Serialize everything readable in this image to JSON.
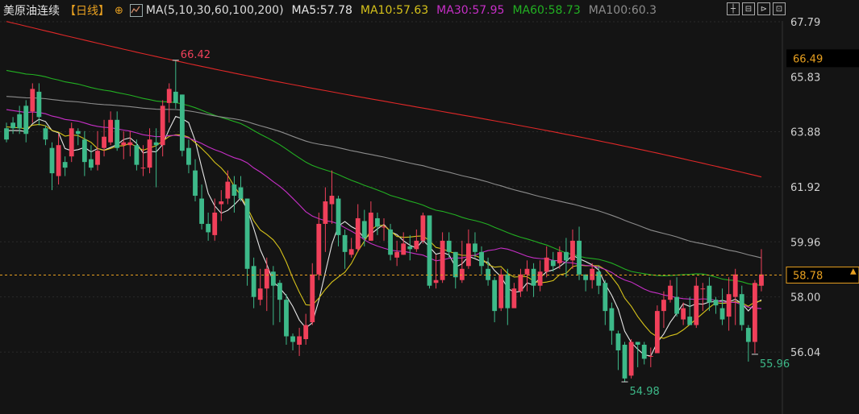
{
  "header": {
    "title": "美原油连续",
    "period": "【日线】",
    "ma_params": "MA(5,10,30,60,100,200)",
    "ma5": "MA5:57.78",
    "ma10": "MA10:57.63",
    "ma30": "MA30:57.95",
    "ma60": "MA60:58.73",
    "ma100": "MA100:60.3",
    "icons": [
      "plus-circle-icon",
      "ma-settings-icon",
      "crosshair-icon",
      "fit-icon",
      "step-icon",
      "fullscreen-icon"
    ]
  },
  "colors": {
    "up": "#f0405a",
    "down": "#3db989",
    "ma5": "#e6e6e6",
    "ma10": "#d6c21a",
    "ma30": "#c62fc6",
    "ma60": "#22b022",
    "ma100": "#8c8c8c",
    "ma200": "#e02828",
    "current_price": "#e8a020",
    "ma200_price": "#e8a020"
  },
  "chart_data": {
    "type": "candlestick",
    "y_ticks": [
      "67.79",
      "63.88",
      "61.92",
      "59.96",
      "58.00",
      "56.04"
    ],
    "current_price": 58.78,
    "current_price_label": "58.78",
    "ma200_label": "66.49",
    "ma200_value": 66.49,
    "ma200_obscured_tick": "65.83",
    "annotations": [
      {
        "label": "66.42",
        "value": 66.42,
        "type": "high"
      },
      {
        "label": "55.96",
        "value": 55.96,
        "type": "low"
      },
      {
        "label": "54.98",
        "value": 54.98,
        "type": "low"
      }
    ],
    "ylim": [
      54.3,
      68.1
    ],
    "candles": [
      [
        64.0,
        63.6,
        64.2,
        63.5
      ],
      [
        64.2,
        64.0,
        64.4,
        63.8
      ],
      [
        64.5,
        64.0,
        64.8,
        63.8
      ],
      [
        64.8,
        63.8,
        65.0,
        63.5
      ],
      [
        64.6,
        65.4,
        65.6,
        64.2
      ],
      [
        65.3,
        64.4,
        65.6,
        64.1
      ],
      [
        64.0,
        63.6,
        64.1,
        63.4
      ],
      [
        63.3,
        62.4,
        63.5,
        61.8
      ],
      [
        62.3,
        63.4,
        63.8,
        62.0
      ],
      [
        62.8,
        62.6,
        63.0,
        62.3
      ],
      [
        63.0,
        64.0,
        64.2,
        62.8
      ],
      [
        63.9,
        63.8,
        64.0,
        63.4
      ],
      [
        63.6,
        62.8,
        63.9,
        62.3
      ],
      [
        62.9,
        62.6,
        63.4,
        62.5
      ],
      [
        62.7,
        63.2,
        63.9,
        62.5
      ],
      [
        63.3,
        63.7,
        64.3,
        63.0
      ],
      [
        63.5,
        64.3,
        64.6,
        63.4
      ],
      [
        64.3,
        63.3,
        64.6,
        63.2
      ],
      [
        63.4,
        63.5,
        63.9,
        62.9
      ],
      [
        63.4,
        63.5,
        63.9,
        63.0
      ],
      [
        63.4,
        62.7,
        63.6,
        62.5
      ],
      [
        62.6,
        62.6,
        63.4,
        62.3
      ],
      [
        62.6,
        63.6,
        64.0,
        62.4
      ],
      [
        63.5,
        63.4,
        64.0,
        61.9
      ],
      [
        63.4,
        64.8,
        65.0,
        63.0
      ],
      [
        64.9,
        65.4,
        65.6,
        64.2
      ],
      [
        65.3,
        64.9,
        66.4,
        64.7
      ],
      [
        65.2,
        63.2,
        65.2,
        63.0
      ],
      [
        63.3,
        62.7,
        63.6,
        62.4
      ],
      [
        62.5,
        61.6,
        62.9,
        61.4
      ],
      [
        61.5,
        60.6,
        62.0,
        60.4
      ],
      [
        60.6,
        60.3,
        61.0,
        60.0
      ],
      [
        60.2,
        61.0,
        61.5,
        60.0
      ],
      [
        61.3,
        61.4,
        61.8,
        60.7
      ],
      [
        61.5,
        62.1,
        62.5,
        61.3
      ],
      [
        62.0,
        61.6,
        62.3,
        61.0
      ],
      [
        61.9,
        61.5,
        62.3,
        61.4
      ],
      [
        61.5,
        59.0,
        61.5,
        58.4
      ],
      [
        59.1,
        58.0,
        59.4,
        57.6
      ],
      [
        57.9,
        58.3,
        59.0,
        57.7
      ],
      [
        58.3,
        59.0,
        59.4,
        57.5
      ],
      [
        58.9,
        58.4,
        59.1,
        57.0
      ],
      [
        58.5,
        57.9,
        58.6,
        57.1
      ],
      [
        57.9,
        56.6,
        58.1,
        56.3
      ],
      [
        56.6,
        56.4,
        56.7,
        56.1
      ],
      [
        56.3,
        56.6,
        56.9,
        55.9
      ],
      [
        56.5,
        57.0,
        57.4,
        56.3
      ],
      [
        57.1,
        58.8,
        59.2,
        57.0
      ],
      [
        58.8,
        60.6,
        61.0,
        58.6
      ],
      [
        60.6,
        61.4,
        61.9,
        59.6
      ],
      [
        61.3,
        61.6,
        62.5,
        60.6
      ],
      [
        61.5,
        60.2,
        61.6,
        59.8
      ],
      [
        60.2,
        59.6,
        60.4,
        59.0
      ],
      [
        59.5,
        59.7,
        60.1,
        59.4
      ],
      [
        59.7,
        60.8,
        61.3,
        59.6
      ],
      [
        60.7,
        60.1,
        61.1,
        59.8
      ],
      [
        60.0,
        61.0,
        61.4,
        60.0
      ],
      [
        60.8,
        60.5,
        61.0,
        60.2
      ],
      [
        60.5,
        60.5,
        60.8,
        60.0
      ],
      [
        60.4,
        59.5,
        60.6,
        59.3
      ],
      [
        59.4,
        59.6,
        60.0,
        59.1
      ],
      [
        59.5,
        59.9,
        60.3,
        59.5
      ],
      [
        59.8,
        59.7,
        60.2,
        59.3
      ],
      [
        59.7,
        60.0,
        60.4,
        59.6
      ],
      [
        60.0,
        60.9,
        61.0,
        59.9
      ],
      [
        60.9,
        58.4,
        60.9,
        58.3
      ],
      [
        58.5,
        58.6,
        59.5,
        58.3
      ],
      [
        58.6,
        60.0,
        60.3,
        58.5
      ],
      [
        60.0,
        59.6,
        60.3,
        59.4
      ],
      [
        59.6,
        58.7,
        59.6,
        58.3
      ],
      [
        58.6,
        59.0,
        60.0,
        58.5
      ],
      [
        59.1,
        59.9,
        60.4,
        59.0
      ],
      [
        59.9,
        59.6,
        60.3,
        59.4
      ],
      [
        59.6,
        59.1,
        59.8,
        58.8
      ],
      [
        59.0,
        58.6,
        59.4,
        58.4
      ],
      [
        58.6,
        57.5,
        58.7,
        57.1
      ],
      [
        57.6,
        58.8,
        59.0,
        57.5
      ],
      [
        58.8,
        57.6,
        59.0,
        57.0
      ],
      [
        57.6,
        58.3,
        58.5,
        57.8
      ],
      [
        58.2,
        58.8,
        59.0,
        58.0
      ],
      [
        58.8,
        59.0,
        59.3,
        58.2
      ],
      [
        59.0,
        58.4,
        59.2,
        58.0
      ],
      [
        58.4,
        58.9,
        59.3,
        58.2
      ],
      [
        58.9,
        59.4,
        59.8,
        58.7
      ],
      [
        59.3,
        59.1,
        59.6,
        58.9
      ],
      [
        59.2,
        59.6,
        59.8,
        59.0
      ],
      [
        59.6,
        59.3,
        60.1,
        58.7
      ],
      [
        59.3,
        60.0,
        60.4,
        59.0
      ],
      [
        60.0,
        58.8,
        60.5,
        58.6
      ],
      [
        58.8,
        58.6,
        58.8,
        58.2
      ],
      [
        58.6,
        59.0,
        59.2,
        58.3
      ],
      [
        58.9,
        58.4,
        59.1,
        58.1
      ],
      [
        58.5,
        57.5,
        58.6,
        57.0
      ],
      [
        57.6,
        56.8,
        57.8,
        56.3
      ],
      [
        56.7,
        56.1,
        56.8,
        55.4
      ],
      [
        56.3,
        55.1,
        56.4,
        54.98
      ],
      [
        55.2,
        56.4,
        56.5,
        55.1
      ],
      [
        56.4,
        56.3,
        56.4,
        55.5
      ],
      [
        56.3,
        55.8,
        56.4,
        55.6
      ],
      [
        55.9,
        55.9,
        56.2,
        55.5
      ],
      [
        56.0,
        57.5,
        57.7,
        56.5
      ],
      [
        57.5,
        57.9,
        58.2,
        56.9
      ],
      [
        57.9,
        58.4,
        58.6,
        57.8
      ],
      [
        58.0,
        57.4,
        58.7,
        57.3
      ],
      [
        57.2,
        57.6,
        57.8,
        57.0
      ],
      [
        57.3,
        57.0,
        58.0,
        57.0
      ],
      [
        57.0,
        58.4,
        58.7,
        56.9
      ],
      [
        58.3,
        58.3,
        58.5,
        57.5
      ],
      [
        58.4,
        57.8,
        58.7,
        57.5
      ],
      [
        57.9,
        57.7,
        58.0,
        57.4
      ],
      [
        57.6,
        57.2,
        58.3,
        57.0
      ],
      [
        57.3,
        58.1,
        58.7,
        56.8
      ],
      [
        58.0,
        58.8,
        59.0,
        57.0
      ],
      [
        58.1,
        57.0,
        58.4,
        56.8
      ],
      [
        56.9,
        56.4,
        57.0,
        55.7
      ],
      [
        56.4,
        58.5,
        58.6,
        56.0
      ],
      [
        58.4,
        58.8,
        59.7,
        58.2
      ]
    ]
  }
}
